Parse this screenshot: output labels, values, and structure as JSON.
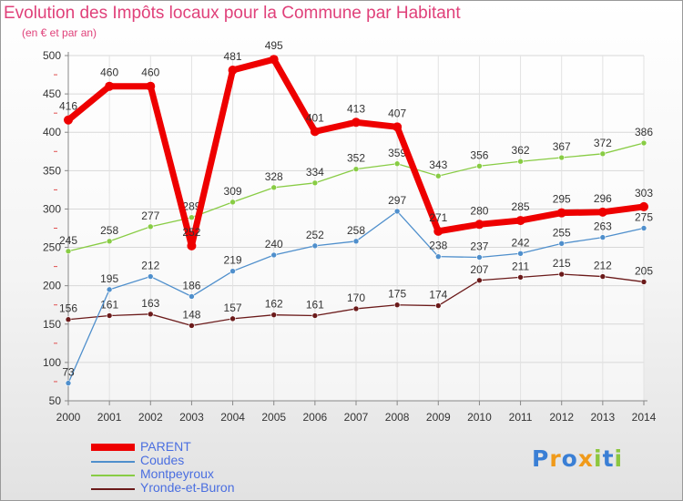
{
  "chart_data": {
    "type": "line",
    "title": "Evolution des Impôts locaux pour la Commune par Habitant",
    "subtitle": "(en € et par an)",
    "xlabel": "",
    "ylabel": "",
    "categories": [
      "2000",
      "2001",
      "2002",
      "2003",
      "2004",
      "2005",
      "2006",
      "2007",
      "2008",
      "2009",
      "2010",
      "2011",
      "2012",
      "2013",
      "2014"
    ],
    "yticks": [
      "50",
      "100",
      "150",
      "200",
      "250",
      "300",
      "350",
      "400",
      "450",
      "500"
    ],
    "ylim": [
      50,
      500
    ],
    "grid": true,
    "legend_position": "bottom-left",
    "series": [
      {
        "name": "PARENT",
        "color": "#ee0000",
        "values": [
          416,
          460,
          460,
          252,
          481,
          495,
          401,
          413,
          407,
          271,
          280,
          285,
          295,
          296,
          303
        ]
      },
      {
        "name": "Coudes",
        "color": "#4f8fcc",
        "values": [
          73,
          195,
          212,
          186,
          219,
          240,
          252,
          258,
          297,
          238,
          237,
          242,
          255,
          263,
          275
        ]
      },
      {
        "name": "Montpeyroux",
        "color": "#88cc44",
        "values": [
          245,
          258,
          277,
          289,
          309,
          328,
          334,
          352,
          359,
          343,
          356,
          362,
          367,
          372,
          386
        ]
      },
      {
        "name": "Yronde-et-Buron",
        "color": "#6b1a1a",
        "values": [
          156,
          161,
          163,
          148,
          157,
          162,
          161,
          170,
          175,
          174,
          207,
          211,
          215,
          212,
          205
        ]
      }
    ]
  },
  "logo": {
    "letters": [
      "P",
      "r",
      "o",
      "x",
      "i",
      "t",
      "i"
    ],
    "colors": [
      "#3a7fd5",
      "#f09a1a",
      "#3a7fd5",
      "#f09a1a",
      "#8cc63f",
      "#3a7fd5",
      "#8cc63f"
    ]
  }
}
